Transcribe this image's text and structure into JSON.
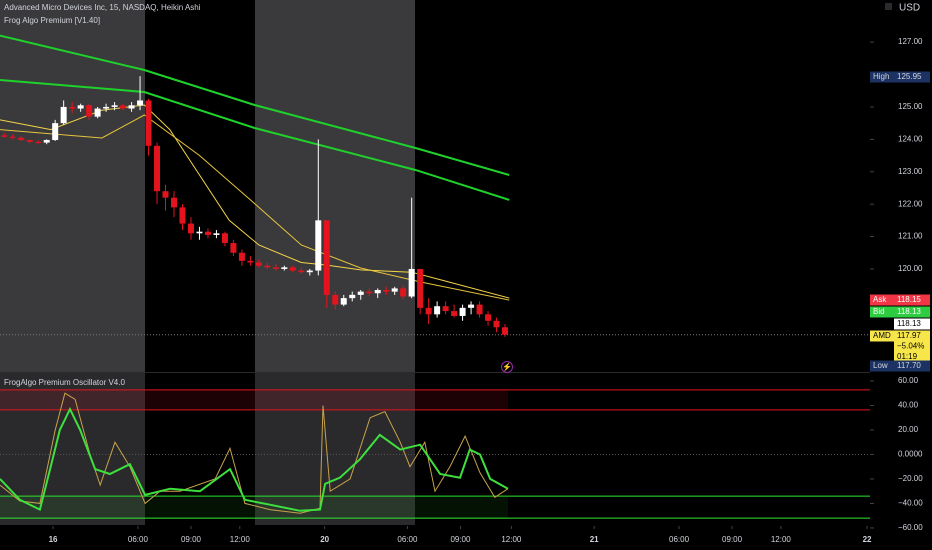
{
  "chart_data": [
    {
      "type": "candlestick",
      "title": "Advanced Micro Devices Inc, 15, NASDAQ, Heikin Ashi",
      "subtitle": "Frog Algo Premium [V1.40]",
      "currency": "USD",
      "xlim": [
        0,
        205
      ],
      "ylim": [
        116.82,
        128.3
      ],
      "yticks": [
        {
          "value": 127,
          "label": "127.00"
        },
        {
          "value": 125,
          "label": "125.00"
        },
        {
          "value": 124,
          "label": "124.00"
        },
        {
          "value": 123,
          "label": "123.00"
        },
        {
          "value": 122,
          "label": "122.00"
        },
        {
          "value": 121,
          "label": "121.00"
        },
        {
          "value": 120,
          "label": "120.00"
        }
      ],
      "up_color": "#ffffff",
      "down_color": "#e3141e",
      "candles": {
        "x": [
          1,
          3,
          5,
          7,
          9,
          11,
          13,
          15,
          17,
          19,
          21,
          23,
          25,
          27,
          29,
          31,
          33,
          35,
          37,
          39,
          41,
          43,
          45,
          47,
          49,
          51,
          53,
          55,
          57,
          59,
          61,
          63,
          65,
          67,
          69,
          71,
          73,
          75,
          77,
          79,
          81,
          83,
          85,
          87,
          89,
          91,
          93,
          95,
          97,
          99,
          101,
          103,
          105,
          107,
          109,
          111,
          113,
          115,
          117,
          119
        ],
        "open": [
          124.12,
          124.08,
          124.05,
          123.98,
          123.92,
          123.9,
          123.98,
          124.5,
          125.0,
          124.95,
          125.05,
          124.7,
          124.95,
          125.0,
          125.05,
          124.95,
          125.05,
          125.2,
          123.8,
          122.4,
          122.2,
          121.9,
          121.4,
          121.1,
          121.15,
          121.05,
          121.1,
          120.8,
          120.5,
          120.25,
          120.2,
          120.1,
          120.05,
          120.0,
          120.05,
          119.95,
          119.9,
          119.95,
          121.5,
          119.2,
          118.9,
          119.1,
          119.2,
          119.3,
          119.25,
          119.35,
          119.3,
          119.4,
          119.15,
          120.0,
          118.8,
          118.6,
          118.85,
          118.7,
          118.55,
          118.8,
          118.9,
          118.6,
          118.4,
          118.2
        ],
        "high": [
          124.2,
          124.15,
          124.1,
          124.0,
          123.98,
          124.0,
          124.6,
          125.2,
          125.15,
          125.1,
          125.1,
          125.0,
          125.1,
          125.15,
          125.1,
          125.15,
          125.95,
          125.25,
          123.9,
          122.6,
          122.4,
          122.0,
          121.6,
          121.3,
          121.25,
          121.2,
          121.15,
          120.9,
          120.6,
          120.4,
          120.3,
          120.2,
          120.15,
          120.1,
          120.1,
          120.05,
          120.0,
          124.0,
          121.5,
          119.3,
          119.2,
          119.3,
          119.35,
          119.4,
          119.4,
          119.45,
          119.45,
          119.5,
          122.2,
          120.0,
          119.1,
          119.0,
          119.0,
          118.9,
          118.9,
          119.0,
          119.0,
          118.7,
          118.5,
          118.3
        ],
        "low": [
          124.05,
          124.0,
          123.95,
          123.88,
          123.85,
          123.85,
          123.95,
          124.45,
          124.8,
          124.85,
          124.6,
          124.65,
          124.85,
          124.9,
          124.9,
          124.85,
          124.9,
          123.5,
          122.0,
          121.8,
          121.6,
          121.2,
          120.9,
          120.9,
          120.95,
          120.95,
          120.7,
          120.4,
          120.1,
          120.1,
          120.05,
          120.0,
          119.95,
          119.95,
          119.9,
          119.85,
          119.8,
          119.8,
          118.8,
          118.75,
          118.85,
          119.0,
          119.05,
          119.15,
          119.1,
          119.2,
          119.2,
          119.05,
          119.1,
          118.6,
          118.3,
          118.5,
          118.6,
          118.5,
          118.4,
          118.6,
          118.5,
          118.25,
          118.05,
          117.9
        ],
        "close": [
          124.08,
          124.05,
          123.98,
          123.92,
          123.9,
          123.98,
          124.5,
          125.0,
          124.95,
          125.05,
          124.7,
          124.95,
          125.0,
          125.05,
          124.95,
          125.05,
          125.2,
          123.8,
          122.4,
          122.2,
          121.9,
          121.4,
          121.1,
          121.15,
          121.05,
          121.1,
          120.8,
          120.5,
          120.25,
          120.2,
          120.1,
          120.05,
          120.0,
          120.05,
          119.95,
          119.9,
          119.95,
          121.5,
          119.2,
          118.9,
          119.1,
          119.2,
          119.3,
          119.25,
          119.35,
          119.3,
          119.4,
          119.15,
          120.0,
          118.8,
          118.6,
          118.85,
          118.7,
          118.55,
          118.8,
          118.9,
          118.6,
          118.4,
          118.2,
          117.97
        ]
      },
      "overlays": [
        {
          "color": "#1fd12b",
          "width": 2,
          "x": [
            0,
            34,
            60,
            98,
            120
          ],
          "values": [
            127.2,
            126.14,
            125.06,
            123.73,
            122.9
          ]
        },
        {
          "color": "#1fd12b",
          "width": 2,
          "x": [
            0,
            34,
            60,
            98,
            120
          ],
          "values": [
            125.83,
            125.46,
            124.35,
            123.05,
            122.13
          ]
        },
        {
          "color": "#f5d547",
          "width": 1,
          "x": [
            0,
            12,
            24,
            34,
            40,
            47,
            54,
            61,
            71,
            77,
            85,
            97,
            104,
            120
          ],
          "values": [
            124.6,
            124.3,
            124.9,
            125.06,
            124.3,
            122.9,
            121.5,
            120.74,
            120.2,
            120.12,
            119.97,
            119.9,
            119.66,
            119.1
          ]
        },
        {
          "color": "#e8c53a",
          "width": 1,
          "x": [
            0,
            24,
            34,
            47,
            59,
            71,
            85,
            99,
            120
          ],
          "values": [
            124.3,
            124.04,
            124.75,
            123.5,
            122.13,
            120.74,
            120.03,
            119.6,
            119.04
          ]
        }
      ],
      "price_tags": [
        {
          "label": "High",
          "lines": [
            "125.95"
          ],
          "bg": "#1c3263",
          "fg": "#d1d4dc"
        },
        {
          "label": "Ask",
          "lines": [
            "118.15"
          ],
          "bg": "#f23645",
          "fg": "#ffffff"
        },
        {
          "label": "Bid",
          "lines": [
            "118.13"
          ],
          "bg": "#2ecc40",
          "fg": "#ffffff"
        },
        {
          "label": "",
          "lines": [
            "118.13"
          ],
          "bg": "#ffffff",
          "fg": "#000000"
        },
        {
          "label": "AMD",
          "lines": [
            "117.97",
            "−5.04%",
            "01:19"
          ],
          "bg": "#f7e64a",
          "fg": "#000000"
        },
        {
          "label": "Low",
          "lines": [
            "117.70"
          ],
          "bg": "#1c3263",
          "fg": "#d1d4dc"
        }
      ]
    },
    {
      "type": "line",
      "title": "FrogAlgo Premium Oscillator V4.0",
      "xlim": [
        0,
        205
      ],
      "ylim": [
        -57.6,
        66.5
      ],
      "yticks": [
        {
          "value": 60,
          "label": "60.00"
        },
        {
          "value": 40,
          "label": "40.00"
        },
        {
          "value": 20,
          "label": "20.00"
        },
        {
          "value": 0,
          "label": "0.0000"
        },
        {
          "value": -20,
          "label": "−20.00"
        },
        {
          "value": -40,
          "label": "−40.00"
        },
        {
          "value": -60,
          "label": "−60.00"
        }
      ],
      "xticks": [
        {
          "value": 12.5,
          "label": "16"
        },
        {
          "value": 32.5,
          "label": "06:00"
        },
        {
          "value": 45,
          "label": "09:00"
        },
        {
          "value": 56.5,
          "label": "12:00"
        },
        {
          "value": 76.5,
          "label": "20"
        },
        {
          "value": 96,
          "label": "06:00"
        },
        {
          "value": 108.5,
          "label": "09:00"
        },
        {
          "value": 120.5,
          "label": "12:00"
        },
        {
          "value": 140,
          "label": "21"
        },
        {
          "value": 160,
          "label": "06:00"
        },
        {
          "value": 172.5,
          "label": "09:00"
        },
        {
          "value": 184,
          "label": "12:00"
        },
        {
          "value": 204.3,
          "label": "22"
        }
      ],
      "levels": [
        {
          "value": 52.7,
          "color": "#e3141e",
          "dash": false
        },
        {
          "value": 36.4,
          "color": "#e3141e",
          "dash": false
        },
        {
          "value": 0,
          "color": "#555555",
          "dash": true
        },
        {
          "value": -34,
          "color": "#2ee62e",
          "dash": false
        },
        {
          "value": -52,
          "color": "#2ee62e",
          "dash": false
        }
      ],
      "series": [
        {
          "color": "#c9a34a",
          "width": 1,
          "x": [
            0,
            4.7,
            9.4,
            13,
            15.3,
            17.7,
            21.2,
            23.6,
            27.1,
            30.6,
            34.2,
            37.7,
            42.4,
            50.7,
            54.2,
            57.7,
            63.6,
            70.7,
            75.4,
            76.1,
            77.8,
            82.5,
            87.2,
            90.7,
            94.3,
            96.6,
            100.1,
            102.5,
            106,
            109.6,
            113.1,
            116.6,
            119.7
          ],
          "values": [
            -25,
            -38,
            -40,
            20,
            50,
            45,
            0,
            -25,
            10,
            -10,
            -40,
            -30,
            -30,
            -20,
            5,
            -40,
            -45,
            -48,
            -44,
            40,
            -30,
            -20,
            30,
            35,
            10,
            -10,
            10,
            -30,
            -10,
            15,
            -15,
            -35,
            -28
          ]
        },
        {
          "color": "#3ee03e",
          "width": 2,
          "x": [
            0,
            4.7,
            9.4,
            11.8,
            14.1,
            16.5,
            18.9,
            22.4,
            25.9,
            30.6,
            34.2,
            40.1,
            47.1,
            54.2,
            57.7,
            63.6,
            70.7,
            75.4,
            76.6,
            80.1,
            84.8,
            89.5,
            94.3,
            99,
            103.7,
            108.4,
            110.7,
            113.1,
            115.5,
            119.7
          ],
          "values": [
            -20,
            -37,
            -45,
            -12,
            20,
            37,
            20,
            -12,
            -16,
            -8,
            -33,
            -28,
            -30,
            -12,
            -37,
            -41,
            -46,
            -45,
            -24,
            -19,
            -4,
            16,
            4,
            8,
            -16,
            -19,
            4,
            0,
            -20,
            -28
          ]
        }
      ]
    }
  ]
}
